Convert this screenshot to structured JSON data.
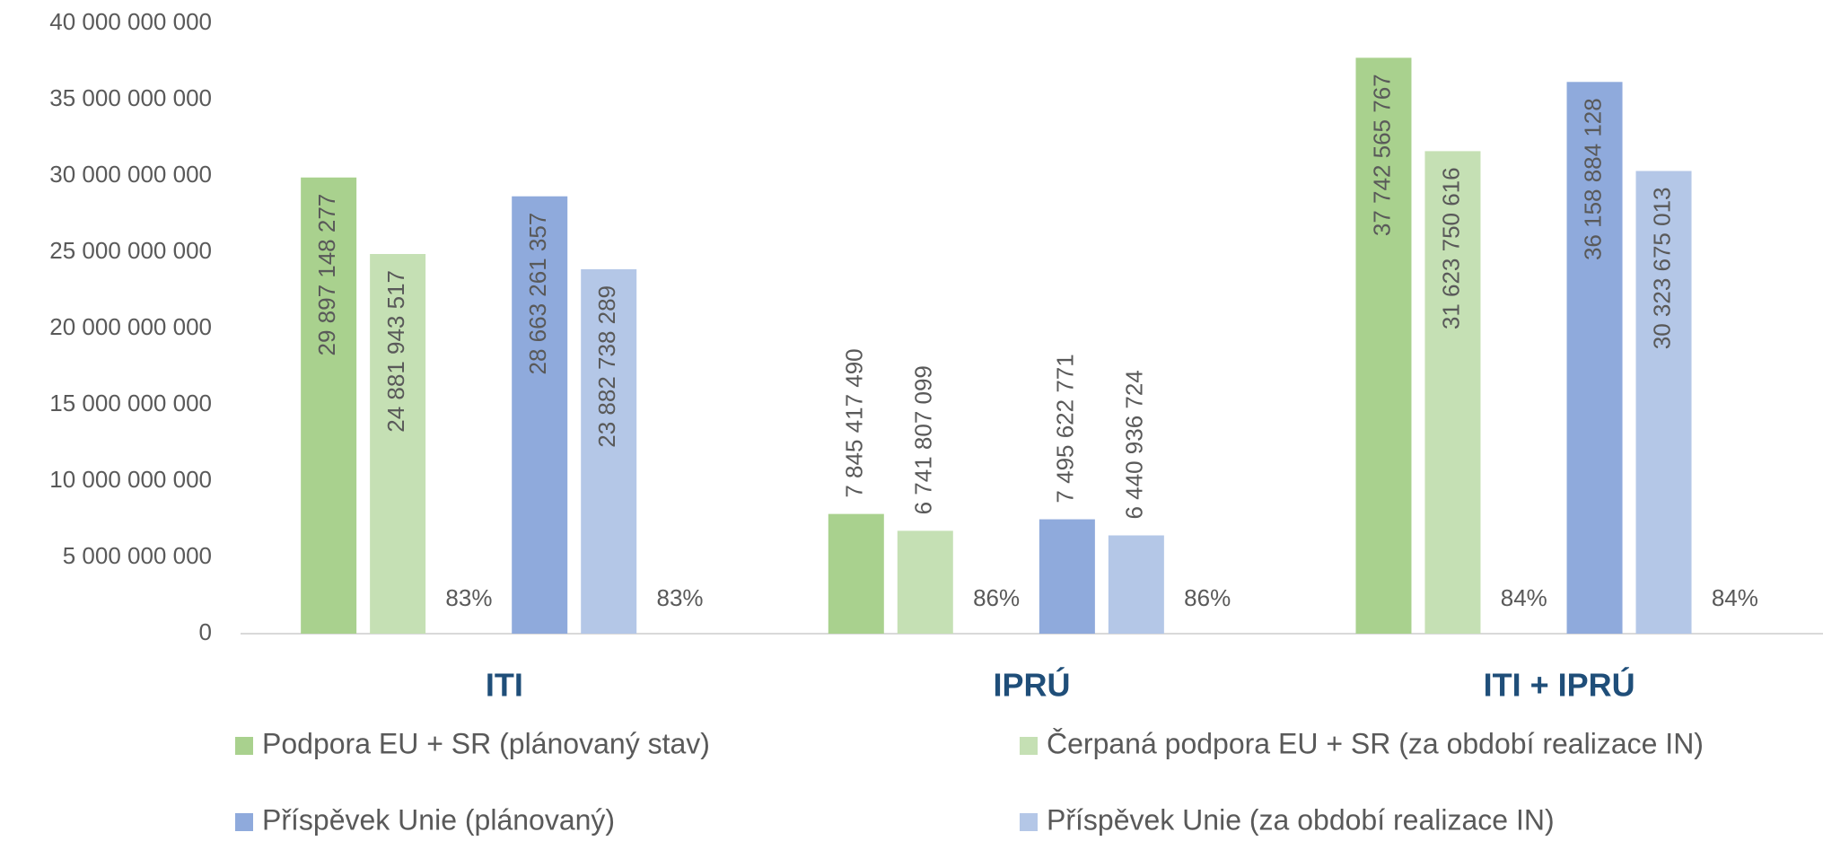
{
  "chart_data": {
    "type": "bar",
    "categories": [
      "ITI",
      "IPRÚ",
      "ITI + IPRÚ"
    ],
    "series": [
      {
        "name": "Podpora EU + SR (plánovaný stav)",
        "color": "#a9d18e",
        "values": [
          29897148277,
          7845417490,
          37742565767
        ],
        "value_labels": [
          "29 897 148 277",
          "7 845 417 490",
          "37 742 565 767"
        ]
      },
      {
        "name": "Čerpaná podpora EU + SR (za období realizace IN)",
        "color": "#c5e0b4",
        "values": [
          24881943517,
          6741807099,
          31623750616
        ],
        "value_labels": [
          "24 881 943 517",
          "6 741 807 099",
          "31 623 750 616"
        ]
      },
      {
        "name": "Příspěvek Unie (plánovaný)",
        "color": "#8faadc",
        "values": [
          28663261357,
          7495622771,
          36158884128
        ],
        "value_labels": [
          "28 663 261 357",
          "7 495 622 771",
          "36 158 884 128"
        ]
      },
      {
        "name": "Příspěvek Unie (za období realizace IN)",
        "color": "#b4c7e7",
        "values": [
          23882738289,
          6440936724,
          30323675013
        ],
        "value_labels": [
          "23 882 738 289",
          "6 440 936 724",
          "30 323 675 013"
        ]
      }
    ],
    "ratio_labels": [
      [
        "83%",
        "83%"
      ],
      [
        "86%",
        "86%"
      ],
      [
        "84%",
        "84%"
      ]
    ],
    "ylim": [
      0,
      40000000000
    ],
    "yticks": [
      0,
      {
        "value": 5000000000,
        "label": "5 000 000 000"
      },
      {
        "value": 10000000000,
        "label": "10 000 000 000"
      },
      {
        "value": 15000000000,
        "label": "15 000 000 000"
      },
      {
        "value": 20000000000,
        "label": "20 000 000 000"
      },
      {
        "value": 25000000000,
        "label": "25 000 000 000"
      },
      {
        "value": 30000000000,
        "label": "30 000 000 000"
      },
      {
        "value": 35000000000,
        "label": "35 000 000 000"
      },
      {
        "value": 40000000000,
        "label": "40 000 000 000"
      }
    ],
    "grid": false
  }
}
